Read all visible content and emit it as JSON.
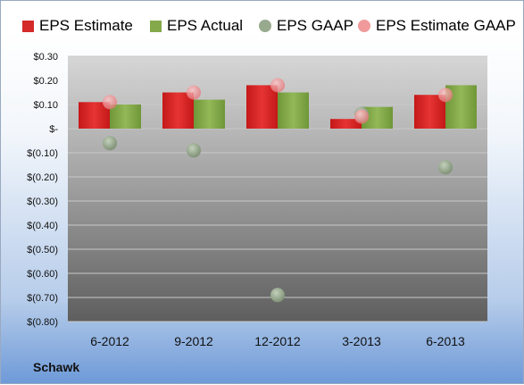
{
  "company": "Schawk",
  "chart_data": {
    "type": "bar",
    "categories": [
      "6-2012",
      "9-2012",
      "12-2012",
      "3-2013",
      "6-2013"
    ],
    "y_tick_labels": [
      "$0.30",
      "$0.20",
      "$0.10",
      "$-",
      "$(0.10)",
      "$(0.20)",
      "$(0.30)",
      "$(0.40)",
      "$(0.50)",
      "$(0.60)",
      "$(0.70)",
      "$(0.80)"
    ],
    "ylim": [
      -0.8,
      0.3
    ],
    "grid": true,
    "legend_position": "top",
    "series": [
      {
        "name": "EPS Estimate",
        "kind": "bar",
        "color": "#d42a2a",
        "values": [
          0.11,
          0.15,
          0.18,
          0.04,
          0.14
        ]
      },
      {
        "name": "EPS Actual",
        "kind": "bar",
        "color": "#84a94a",
        "values": [
          0.1,
          0.12,
          0.15,
          0.09,
          0.18
        ]
      },
      {
        "name": "EPS GAAP",
        "kind": "marker",
        "color": "#98aa8e",
        "values": [
          -0.06,
          -0.09,
          -0.69,
          0.06,
          -0.16
        ]
      },
      {
        "name": "EPS Estimate GAAP",
        "kind": "marker",
        "color": "#f09a9c",
        "values": [
          0.11,
          0.15,
          0.18,
          0.05,
          0.14
        ]
      }
    ]
  }
}
